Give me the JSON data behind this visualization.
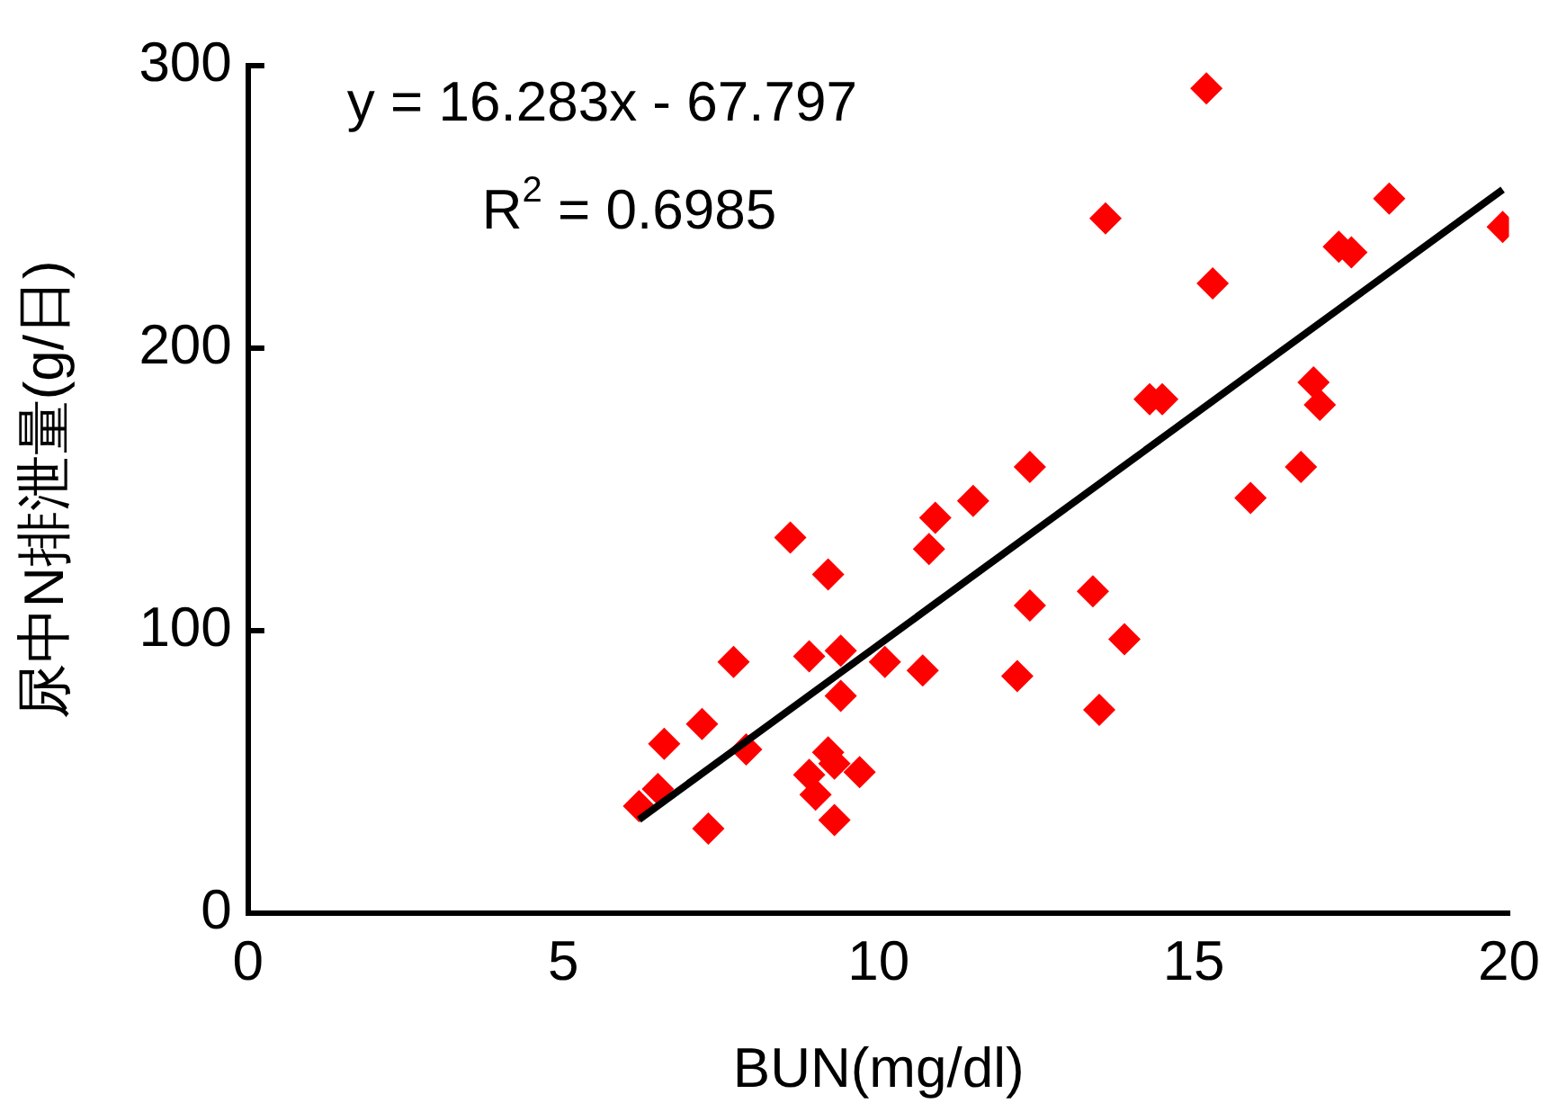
{
  "chart_data": {
    "type": "scatter",
    "xlabel": "BUN(mg/dl)",
    "ylabel": "尿中N排泄量(g/日)",
    "xlim": [
      0,
      20
    ],
    "xticks": [
      0,
      5,
      10,
      15,
      20
    ],
    "ylim": [
      0,
      300
    ],
    "yticks": [
      0,
      100,
      200,
      300
    ],
    "grid": false,
    "legend": false,
    "marker": "diamond",
    "annotations": [
      "y = 16.283x - 67.797",
      "R$^{2}$ = 0.6985"
    ],
    "series": [
      {
        "color": "#ff0000",
        "x": [
          8.6,
          9.2,
          10.9,
          10.8,
          11.5,
          7.7,
          8.9,
          9.4,
          10.1,
          10.7,
          9.4,
          7.2,
          6.6,
          7.9,
          12.4,
          13.4,
          12.2,
          13.5,
          13.9,
          9.2,
          9.3,
          8.9,
          9.7,
          9.0,
          9.3,
          7.3,
          6.5,
          6.2,
          15.2,
          13.6,
          18.1,
          19.9,
          17.3,
          17.5,
          15.3,
          14.3,
          14.5,
          16.9,
          17.0,
          12.4,
          16.7,
          15.9
        ],
        "values": [
          133,
          120,
          140,
          129,
          146,
          89,
          91,
          93,
          89,
          86,
          77,
          67,
          60,
          58,
          109,
          114,
          84,
          72,
          97,
          57,
          53,
          49,
          50,
          42,
          33,
          30,
          44,
          38,
          292,
          246,
          253,
          243,
          236,
          234,
          223,
          182,
          182,
          188,
          180,
          158,
          158,
          147
        ]
      },
      {
        "type": "line",
        "color": "#000000",
        "marker": "none",
        "x": [
          6.2,
          19.9
        ],
        "values": [
          33.2,
          256.2
        ]
      }
    ]
  }
}
